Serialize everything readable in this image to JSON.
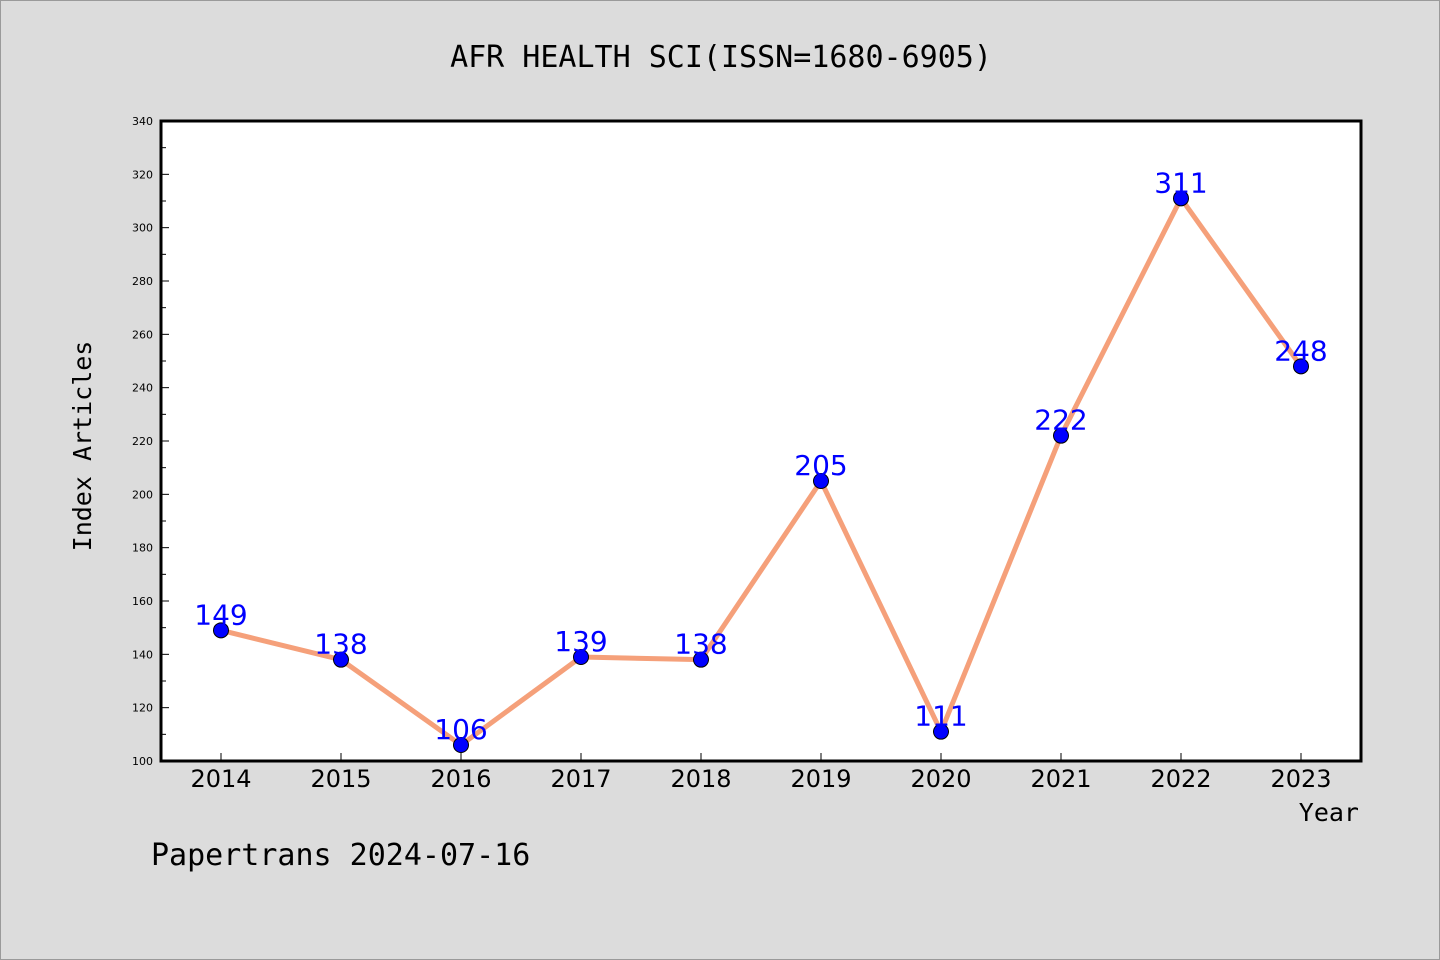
{
  "chart_data": {
    "type": "line",
    "title": "AFR HEALTH SCI(ISSN=1680-6905)",
    "xlabel": "Year",
    "ylabel": "Index Articles",
    "categories": [
      "2014",
      "2015",
      "2016",
      "2017",
      "2018",
      "2019",
      "2020",
      "2021",
      "2022",
      "2023"
    ],
    "series": [
      {
        "values": [
          149,
          138,
          106,
          139,
          138,
          205,
          111,
          222,
          311,
          248
        ],
        "line_color": "#f5a07a",
        "marker_color": "#0000ff"
      }
    ],
    "data_labels": [
      "149",
      "138",
      "106",
      "139",
      "138",
      "205",
      "111",
      "222",
      "311",
      "248"
    ],
    "ylim": [
      100,
      340
    ],
    "yticks": [
      "100",
      "120",
      "140",
      "160",
      "180",
      "200",
      "220",
      "240",
      "260",
      "280",
      "300",
      "320",
      "340"
    ],
    "grid": false,
    "legend": "none",
    "background_color": "#dcdcdc",
    "plot_background_color": "#ffffff",
    "label_color": "#0000ff"
  },
  "footer": {
    "watermark": "Papertrans 2024-07-16"
  }
}
